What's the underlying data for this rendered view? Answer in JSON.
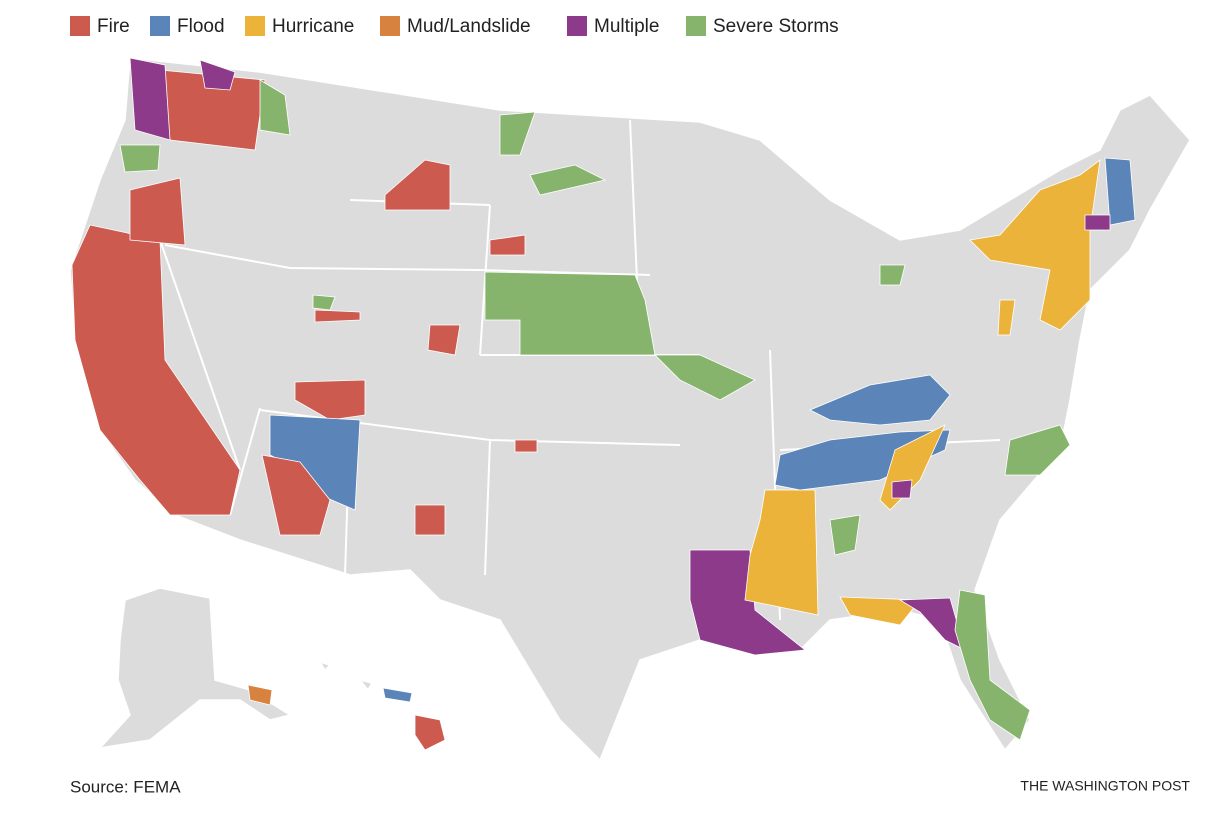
{
  "legend": [
    {
      "label": "Fire",
      "color": "#cc5a4f"
    },
    {
      "label": "Flood",
      "color": "#5b84b8"
    },
    {
      "label": "Hurricane",
      "color": "#ecb33a"
    },
    {
      "label": "Mud/Landslide",
      "color": "#d88240"
    },
    {
      "label": "Multiple",
      "color": "#8d3a8a"
    },
    {
      "label": "Severe Storms",
      "color": "#86b46c"
    }
  ],
  "source": "Source: FEMA",
  "credit": "THE WASHINGTON POST"
}
